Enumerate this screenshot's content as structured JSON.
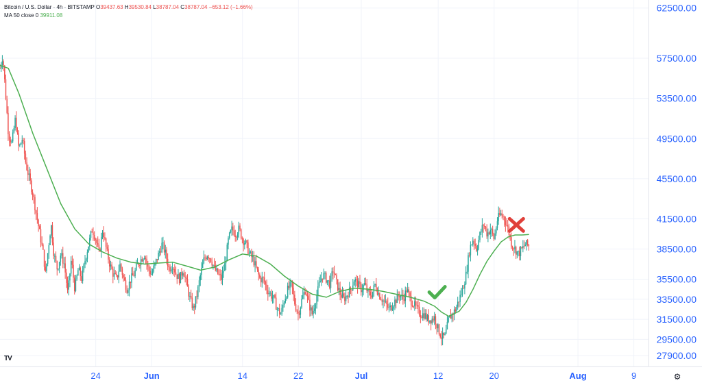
{
  "legend": {
    "symbol": "Bitcoin / U.S. Dollar · 4h · BITSTAMP",
    "open_label": "O",
    "open": "39437.63",
    "high_label": "H",
    "high": "39530.84",
    "low_label": "L",
    "low": "38787.04",
    "close_label": "C",
    "close": "38787.04",
    "change": "−653.12 (−1.66%)",
    "ma_label": "MA 50 close 0",
    "ma_value": "39911.08"
  },
  "colors": {
    "up": "#26a69a",
    "down": "#ef5350",
    "ma": "#4caf50",
    "grid": "#f0f3fa",
    "axis_text": "#2962ff",
    "check": "#4caf50",
    "cross": "#e0403a"
  },
  "icons": {
    "logo": "tradingview-logo-icon",
    "settings": "gear-icon",
    "check": "checkmark-icon",
    "cross": "cross-icon"
  },
  "branding": {
    "logo_text": "TV"
  },
  "chart_data": {
    "type": "candlestick",
    "title": "",
    "ylim": [
      26800,
      63300
    ],
    "y_ticks": [
      "62500.00",
      "57500.00",
      "53500.00",
      "49500.00",
      "45500.00",
      "41500.00",
      "38500.00",
      "35500.00",
      "33500.00",
      "31500.00",
      "29500.00",
      "27900.00"
    ],
    "x_ticks": [
      {
        "label": "24",
        "day": 24,
        "bold": false
      },
      {
        "label": "Jun",
        "day": 32,
        "bold": true
      },
      {
        "label": "14",
        "day": 45,
        "bold": false
      },
      {
        "label": "22",
        "day": 53,
        "bold": false
      },
      {
        "label": "Jul",
        "day": 62,
        "bold": true
      },
      {
        "label": "12",
        "day": 73,
        "bold": false
      },
      {
        "label": "20",
        "day": 81,
        "bold": false
      },
      {
        "label": "Aug",
        "day": 93,
        "bold": true
      },
      {
        "label": "9",
        "day": 101,
        "bold": false
      }
    ],
    "x_domain_days": [
      10.3,
      103.1
    ],
    "anchors": [
      [
        10.3,
        56500
      ],
      [
        10.7,
        57800
      ],
      [
        11.1,
        54000
      ],
      [
        11.5,
        50000
      ],
      [
        12.0,
        49000
      ],
      [
        12.5,
        51500
      ],
      [
        13.0,
        48500
      ],
      [
        13.5,
        49500
      ],
      [
        14.0,
        47000
      ],
      [
        14.5,
        45500
      ],
      [
        15.0,
        44000
      ],
      [
        15.5,
        42000
      ],
      [
        16.0,
        40000
      ],
      [
        16.5,
        38000
      ],
      [
        16.8,
        36000
      ],
      [
        17.2,
        38500
      ],
      [
        17.6,
        41000
      ],
      [
        18.0,
        38000
      ],
      [
        18.5,
        36500
      ],
      [
        19.0,
        38000
      ],
      [
        19.5,
        37000
      ],
      [
        20.0,
        34000
      ],
      [
        20.5,
        37500
      ],
      [
        21.0,
        34500
      ],
      [
        21.5,
        36500
      ],
      [
        22.0,
        35500
      ],
      [
        22.5,
        37500
      ],
      [
        23.0,
        39000
      ],
      [
        23.5,
        40500
      ],
      [
        24.0,
        39500
      ],
      [
        24.5,
        38000
      ],
      [
        25.0,
        40500
      ],
      [
        25.5,
        38500
      ],
      [
        26.0,
        37000
      ],
      [
        26.5,
        36000
      ],
      [
        27.0,
        35500
      ],
      [
        27.5,
        37000
      ],
      [
        28.0,
        35500
      ],
      [
        28.5,
        34500
      ],
      [
        29.0,
        35500
      ],
      [
        29.5,
        36000
      ],
      [
        30.0,
        37000
      ],
      [
        30.5,
        37500
      ],
      [
        31.0,
        38000
      ],
      [
        31.5,
        36500
      ],
      [
        32.0,
        36000
      ],
      [
        32.5,
        37000
      ],
      [
        33.0,
        38000
      ],
      [
        33.5,
        39000
      ],
      [
        34.0,
        38000
      ],
      [
        34.5,
        36500
      ],
      [
        35.0,
        37000
      ],
      [
        35.5,
        36000
      ],
      [
        36.0,
        35500
      ],
      [
        36.5,
        36500
      ],
      [
        37.0,
        35000
      ],
      [
        37.5,
        33500
      ],
      [
        38.0,
        32500
      ],
      [
        38.5,
        34000
      ],
      [
        39.0,
        36000
      ],
      [
        39.5,
        37500
      ],
      [
        40.0,
        38000
      ],
      [
        40.5,
        37500
      ],
      [
        41.0,
        36500
      ],
      [
        41.5,
        36000
      ],
      [
        42.0,
        35500
      ],
      [
        42.5,
        37000
      ],
      [
        43.0,
        39500
      ],
      [
        43.5,
        40500
      ],
      [
        44.0,
        40000
      ],
      [
        44.5,
        40500
      ],
      [
        45.0,
        39500
      ],
      [
        45.5,
        39000
      ],
      [
        46.0,
        38000
      ],
      [
        46.5,
        37500
      ],
      [
        47.0,
        36500
      ],
      [
        47.5,
        35500
      ],
      [
        48.0,
        35500
      ],
      [
        48.5,
        34500
      ],
      [
        49.0,
        34000
      ],
      [
        49.5,
        33500
      ],
      [
        50.0,
        32500
      ],
      [
        50.5,
        32000
      ],
      [
        51.0,
        33500
      ],
      [
        51.5,
        34500
      ],
      [
        52.0,
        35000
      ],
      [
        52.5,
        33000
      ],
      [
        53.0,
        32000
      ],
      [
        53.5,
        33500
      ],
      [
        54.0,
        34500
      ],
      [
        54.5,
        33000
      ],
      [
        55.0,
        32000
      ],
      [
        55.5,
        33500
      ],
      [
        56.0,
        35000
      ],
      [
        56.5,
        36000
      ],
      [
        57.0,
        35500
      ],
      [
        57.5,
        35000
      ],
      [
        58.0,
        36500
      ],
      [
        58.5,
        35000
      ],
      [
        59.0,
        34000
      ],
      [
        59.5,
        33500
      ],
      [
        60.0,
        34000
      ],
      [
        60.5,
        34500
      ],
      [
        61.0,
        35500
      ],
      [
        61.5,
        35000
      ],
      [
        62.0,
        34500
      ],
      [
        62.5,
        35000
      ],
      [
        63.0,
        34000
      ],
      [
        63.5,
        34000
      ],
      [
        64.0,
        35000
      ],
      [
        64.5,
        34000
      ],
      [
        65.0,
        33500
      ],
      [
        65.5,
        33000
      ],
      [
        66.0,
        32500
      ],
      [
        66.5,
        33000
      ],
      [
        67.0,
        33500
      ],
      [
        67.5,
        34000
      ],
      [
        68.0,
        33500
      ],
      [
        68.5,
        34500
      ],
      [
        69.0,
        33500
      ],
      [
        69.5,
        33000
      ],
      [
        70.0,
        32500
      ],
      [
        70.5,
        32000
      ],
      [
        71.0,
        32000
      ],
      [
        71.5,
        31500
      ],
      [
        72.0,
        31500
      ],
      [
        72.5,
        31700
      ],
      [
        73.0,
        30500
      ],
      [
        73.5,
        29700
      ],
      [
        74.0,
        29800
      ],
      [
        74.5,
        31500
      ],
      [
        75.0,
        32000
      ],
      [
        75.5,
        32500
      ],
      [
        76.0,
        33500
      ],
      [
        76.5,
        34500
      ],
      [
        77.0,
        36000
      ],
      [
        77.5,
        38500
      ],
      [
        78.0,
        39500
      ],
      [
        78.5,
        38500
      ],
      [
        79.0,
        40000
      ],
      [
        79.5,
        41000
      ],
      [
        80.0,
        40000
      ],
      [
        80.5,
        40500
      ],
      [
        81.0,
        39500
      ],
      [
        81.5,
        41500
      ],
      [
        82.0,
        42000
      ],
      [
        82.5,
        41500
      ],
      [
        83.0,
        40500
      ],
      [
        83.5,
        39000
      ],
      [
        84.0,
        38500
      ],
      [
        84.5,
        38000
      ],
      [
        85.0,
        38500
      ],
      [
        85.5,
        39000
      ],
      [
        86.0,
        38800
      ]
    ],
    "last_close": 38787.04,
    "ma": {
      "name": "MA 50 close 0",
      "points": [
        [
          10.3,
          56800
        ],
        [
          11.5,
          56500
        ],
        [
          13.0,
          54000
        ],
        [
          15.0,
          50000
        ],
        [
          17.0,
          46500
        ],
        [
          19.0,
          43000
        ],
        [
          21.0,
          40500
        ],
        [
          23.0,
          39000
        ],
        [
          25.0,
          38200
        ],
        [
          27.0,
          37600
        ],
        [
          29.0,
          37200
        ],
        [
          31.0,
          37000
        ],
        [
          33.0,
          37100
        ],
        [
          35.0,
          37200
        ],
        [
          37.0,
          36800
        ],
        [
          39.0,
          36400
        ],
        [
          41.0,
          36700
        ],
        [
          43.0,
          37400
        ],
        [
          45.0,
          38000
        ],
        [
          47.0,
          37800
        ],
        [
          49.0,
          37000
        ],
        [
          51.0,
          35800
        ],
        [
          53.0,
          34800
        ],
        [
          55.0,
          34000
        ],
        [
          57.0,
          33700
        ],
        [
          59.0,
          34300
        ],
        [
          61.0,
          34600
        ],
        [
          63.0,
          34500
        ],
        [
          65.0,
          34300
        ],
        [
          67.0,
          34000
        ],
        [
          69.0,
          33700
        ],
        [
          71.0,
          33300
        ],
        [
          72.5,
          32800
        ],
        [
          73.5,
          32200
        ],
        [
          74.5,
          31800
        ],
        [
          76.0,
          32300
        ],
        [
          77.0,
          33200
        ],
        [
          78.0,
          34500
        ],
        [
          79.0,
          36000
        ],
        [
          80.0,
          37300
        ],
        [
          81.0,
          38300
        ],
        [
          82.0,
          39200
        ],
        [
          83.0,
          39700
        ],
        [
          84.0,
          39900
        ],
        [
          85.0,
          39900
        ],
        [
          86.0,
          39950
        ]
      ]
    },
    "annotations": [
      {
        "type": "check",
        "day": 72.8,
        "value": 34200
      },
      {
        "type": "cross",
        "day": 84.2,
        "value": 40900
      }
    ]
  }
}
